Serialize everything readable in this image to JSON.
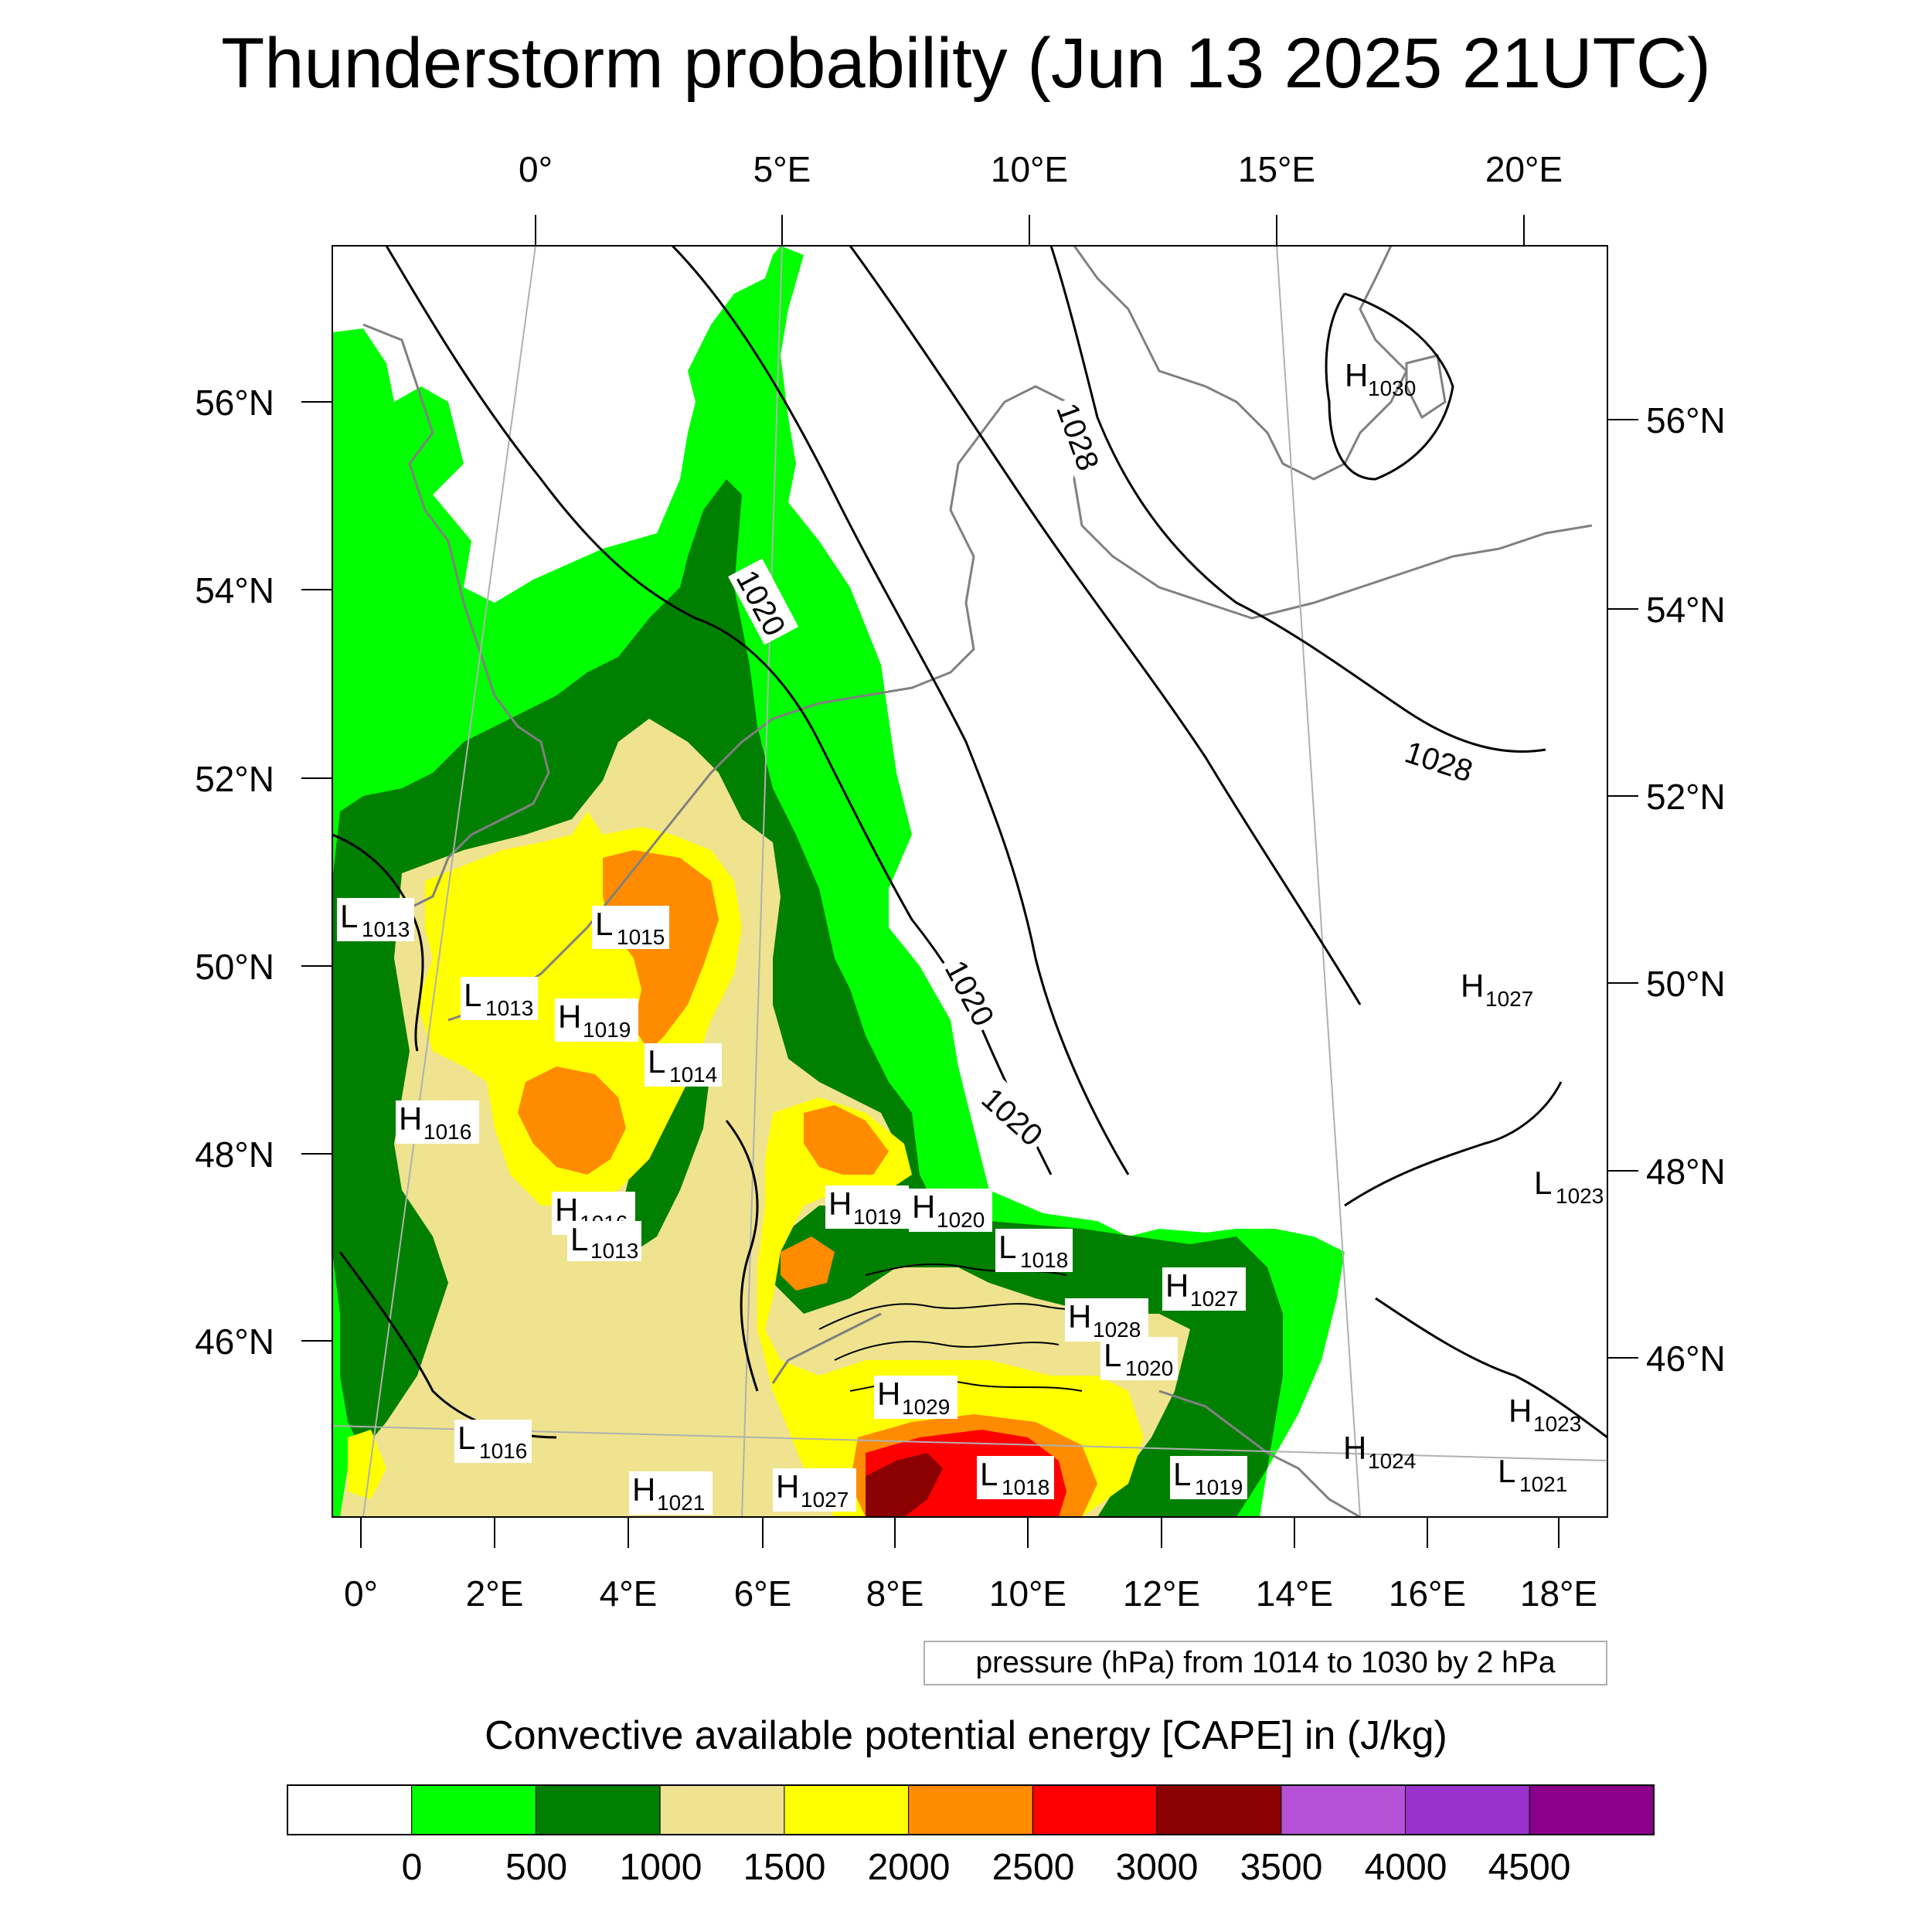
{
  "title": "Thunderstorm probability (Jun 13 2025 21UTC)",
  "top_lon_labels": [
    "0°",
    "5°E",
    "10°E",
    "15°E",
    "20°E"
  ],
  "bottom_lon_labels": [
    "0°",
    "2°E",
    "4°E",
    "6°E",
    "8°E",
    "10°E",
    "12°E",
    "14°E",
    "16°E",
    "18°E"
  ],
  "left_lat_labels": [
    "56°N",
    "54°N",
    "52°N",
    "50°N",
    "48°N",
    "46°N"
  ],
  "right_lat_labels": [
    "56°N",
    "54°N",
    "52°N",
    "50°N",
    "48°N",
    "46°N"
  ],
  "isobar_labels": [
    {
      "text": "1020",
      "angle": 62
    },
    {
      "text": "1028",
      "angle": 70
    },
    {
      "text": "1028",
      "angle": 18
    },
    {
      "text": "1020",
      "angle": 62
    },
    {
      "text": "1020",
      "angle": 42
    }
  ],
  "pressure_centers": [
    {
      "letter": "H",
      "value": "1030"
    },
    {
      "letter": "L",
      "value": "1013"
    },
    {
      "letter": "L",
      "value": "1015"
    },
    {
      "letter": "L",
      "value": "1013"
    },
    {
      "letter": "H",
      "value": "1019"
    },
    {
      "letter": "L",
      "value": "1014"
    },
    {
      "letter": "H",
      "value": "1027"
    },
    {
      "letter": "H",
      "value": "1016"
    },
    {
      "letter": "L",
      "value": "1023"
    },
    {
      "letter": "H",
      "value": "1016"
    },
    {
      "letter": "L",
      "value": "1013"
    },
    {
      "letter": "H",
      "value": "1019"
    },
    {
      "letter": "H",
      "value": "1020"
    },
    {
      "letter": "L",
      "value": "1018"
    },
    {
      "letter": "H",
      "value": "1027"
    },
    {
      "letter": "H",
      "value": "1028"
    },
    {
      "letter": "L",
      "value": "1020"
    },
    {
      "letter": "H",
      "value": "1029"
    },
    {
      "letter": "H",
      "value": "1023"
    },
    {
      "letter": "L",
      "value": "1016"
    },
    {
      "letter": "H",
      "value": "1024"
    },
    {
      "letter": "L",
      "value": "1021"
    },
    {
      "letter": "H",
      "value": "1021"
    },
    {
      "letter": "H",
      "value": "1027"
    },
    {
      "letter": "L",
      "value": "1018"
    },
    {
      "letter": "L",
      "value": "1019"
    }
  ],
  "contour_info": "pressure (hPa) from 1014 to 1030 by 2 hPa",
  "colorbar": {
    "title": "Convective available potential energy [CAPE] in (J/kg)",
    "colors": [
      "#ffffff",
      "#00ff00",
      "#007f00",
      "#efe38f",
      "#ffff00",
      "#ff8c00",
      "#ff0000",
      "#8b0000",
      "#b552d6",
      "#9932cc",
      "#8b008b"
    ],
    "tick_labels": [
      "0",
      "500",
      "1000",
      "1500",
      "2000",
      "2500",
      "3000",
      "3500",
      "4000",
      "4500"
    ]
  },
  "colors": {
    "cape_0_500": "#00ff00",
    "cape_500_1000": "#007f00",
    "cape_1000_1500": "#efe38f",
    "cape_1500_2000": "#ffff00",
    "cape_2000_2500": "#ff8c00",
    "cape_2500_3000": "#ff0000",
    "cape_3000_3500": "#8b0000",
    "coastline": "#808080",
    "isobar": "#000000"
  }
}
